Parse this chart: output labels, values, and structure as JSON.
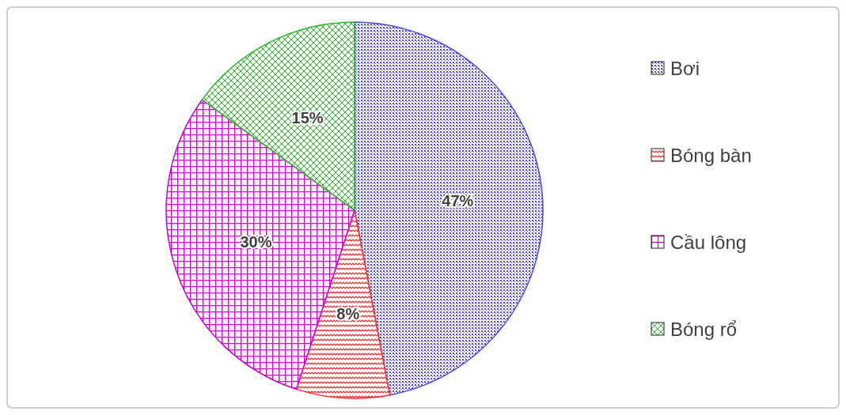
{
  "chart_data": {
    "type": "pie",
    "categories": [
      "Bơi",
      "Bóng bàn",
      "Cầu lông",
      "Bóng rổ"
    ],
    "values": [
      47,
      8,
      30,
      15
    ],
    "colors": [
      "#4b4bd8",
      "#ff2a2a",
      "#cc00cc",
      "#22bb22"
    ],
    "value_labels": [
      "47%",
      "8%",
      "30%",
      "15%"
    ],
    "legend": "right"
  }
}
